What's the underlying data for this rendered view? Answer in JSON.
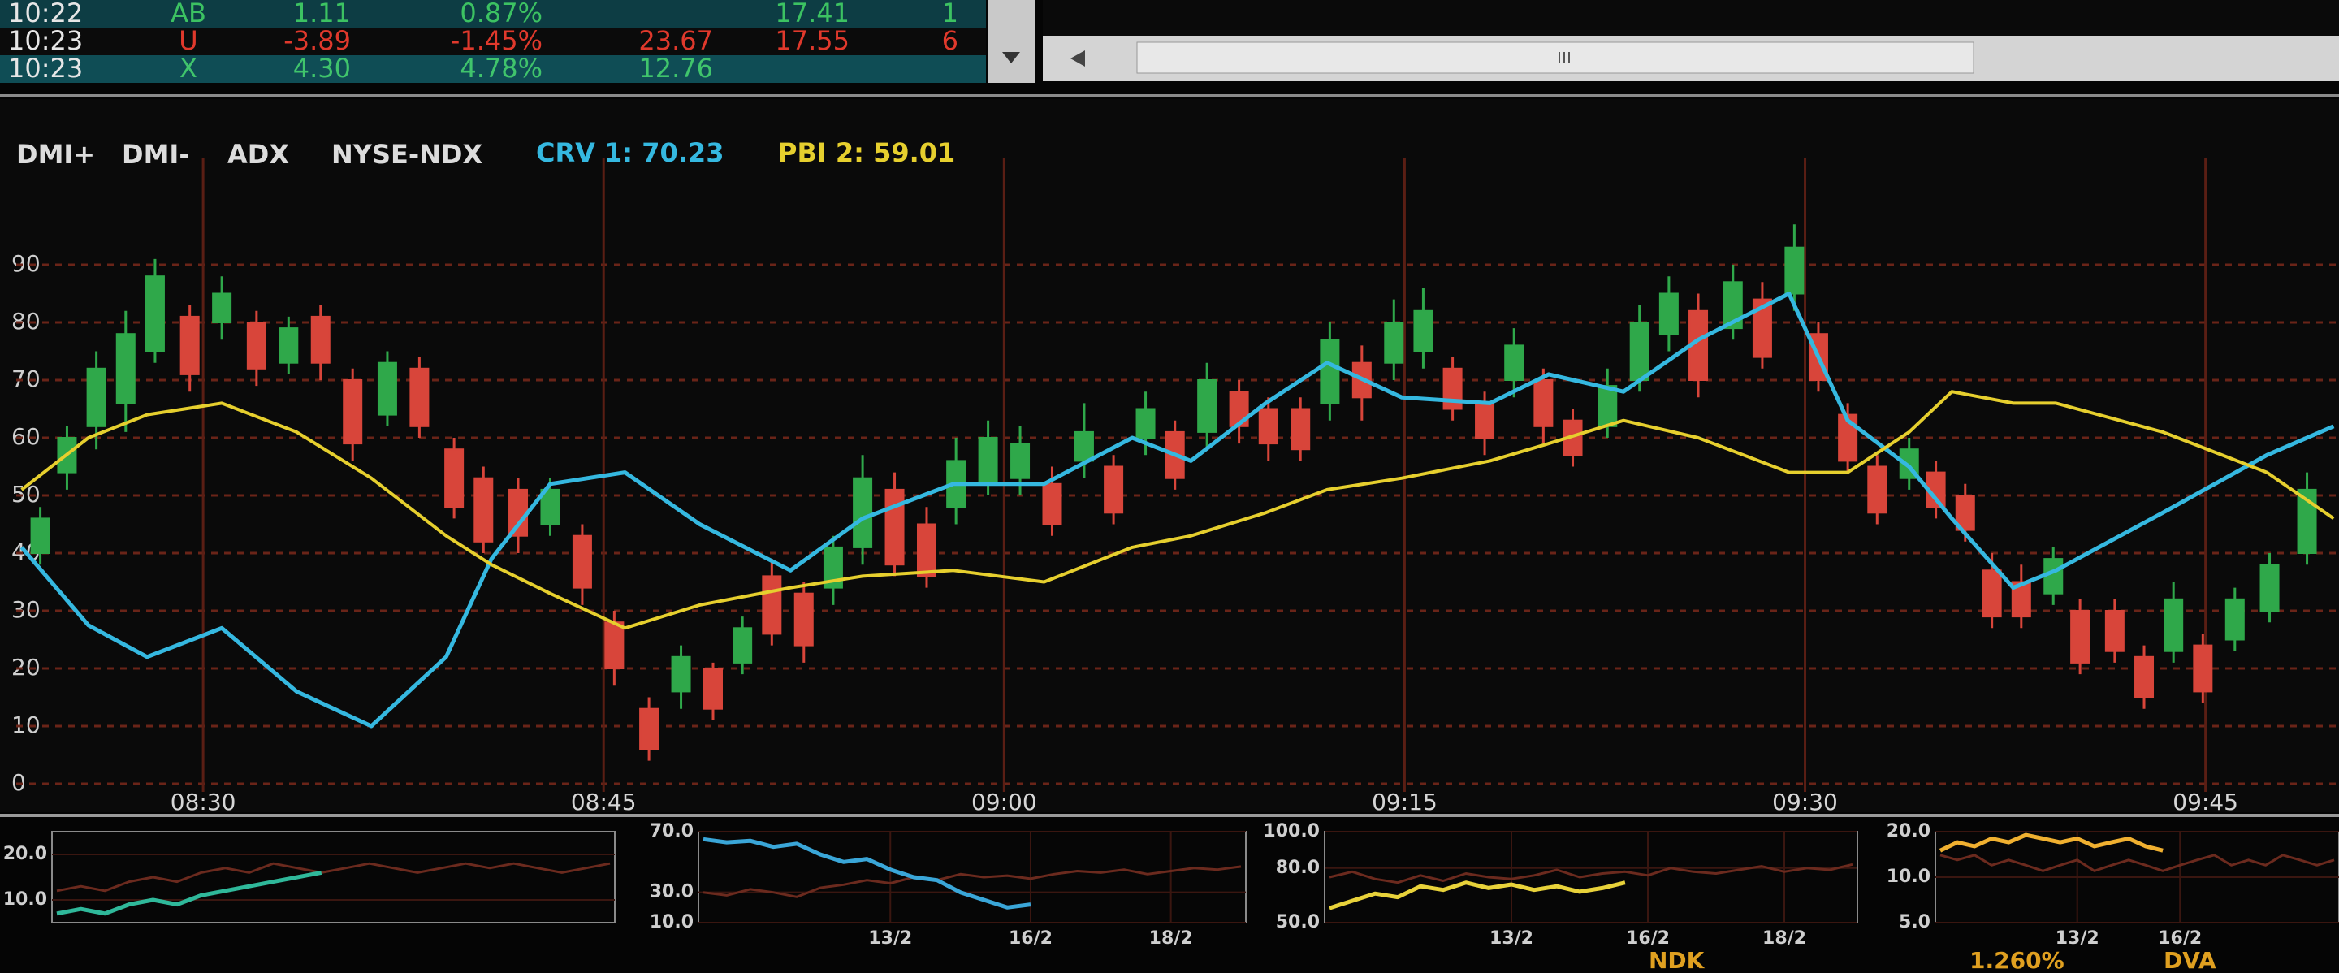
{
  "ticker_table": {
    "rows": [
      {
        "time": "10:22",
        "symbol": "AB",
        "change": "1.11",
        "pct": "0.87%",
        "avg": "17.41",
        "qty": "1",
        "color": "#3cc262"
      },
      {
        "time": "10:23",
        "symbol": "U",
        "change": "-3.89",
        "pct": "-1.45%",
        "price": "23.67",
        "avg": "17.55",
        "qty": "6",
        "color": "#e0392c"
      },
      {
        "time": "10:23",
        "symbol": "X",
        "change": "4.30",
        "pct": "4.78%",
        "price": "12.76",
        "color": "#40c46c"
      }
    ]
  },
  "main_chart": {
    "type": "candlestick",
    "legend": [
      "DMI+",
      "DMI-",
      "ADX",
      "NYSE-NDX"
    ],
    "series": [
      {
        "name": "CRV 1: 70.23",
        "color": "#35b8e0",
        "x": [
          23.2,
          25.7,
          27.9,
          30.7,
          33.5,
          36.3,
          39.1,
          40.8,
          43,
          45.8,
          48.6,
          52,
          54.7,
          58.1,
          61.5,
          64.8,
          67,
          69.8,
          72.1,
          74.9,
          78.2,
          80.4,
          83.2,
          86,
          89.4,
          91.6,
          93.9,
          95.5,
          97.8,
          99.4,
          103.4,
          107.3,
          109.8
        ],
        "values": [
          41,
          27.5,
          22,
          27,
          16,
          10,
          22,
          39,
          52,
          54,
          45,
          37,
          46,
          52,
          52,
          60,
          56,
          66,
          73,
          67,
          66,
          71,
          68,
          77,
          85,
          63,
          55,
          46,
          34,
          37,
          47,
          57,
          62
        ]
      },
      {
        "name": "PBI 2: 59.01",
        "color": "#e6cf2e",
        "x": [
          23.2,
          25.7,
          27.9,
          30.7,
          33.5,
          36.3,
          39.1,
          40.8,
          43,
          45.8,
          48.6,
          52,
          54.7,
          58.1,
          61.5,
          64.8,
          67,
          69.8,
          72.1,
          74.9,
          78.2,
          80.4,
          83.2,
          86,
          89.4,
          91.6,
          93.9,
          95.5,
          97.8,
          99.4,
          103.4,
          107.3,
          109.8
        ],
        "values": [
          51,
          60,
          64,
          66,
          61,
          53,
          43,
          38,
          33,
          27,
          31,
          34,
          36,
          37,
          35,
          41,
          43,
          47,
          51,
          53,
          56,
          59,
          63,
          60,
          54,
          54,
          61,
          68,
          66,
          66,
          61,
          54,
          46
        ]
      }
    ],
    "candles": {
      "up_color": "#2fa84a",
      "down_color": "#d8453a",
      "x": [
        23.9,
        24.9,
        26.0,
        27.1,
        28.2,
        29.5,
        30.7,
        32.0,
        33.2,
        34.4,
        35.6,
        36.9,
        38.1,
        39.4,
        40.5,
        41.8,
        43.0,
        44.2,
        45.4,
        46.7,
        47.9,
        49.1,
        50.2,
        51.3,
        52.5,
        53.6,
        54.7,
        55.9,
        57.1,
        58.2,
        59.4,
        60.6,
        61.8,
        63.0,
        64.1,
        65.3,
        66.4,
        67.6,
        68.8,
        69.9,
        71.1,
        72.2,
        73.4,
        74.6,
        75.7,
        76.8,
        78.0,
        79.1,
        80.2,
        81.3,
        82.6,
        83.8,
        84.9,
        86.0,
        87.3,
        88.4,
        89.6,
        90.5,
        91.6,
        92.7,
        93.9,
        94.9,
        96.0,
        97.0,
        98.1,
        99.3,
        100.3,
        101.6,
        102.7,
        103.8,
        104.9,
        106.1,
        107.4,
        108.8
      ],
      "open": [
        40,
        54,
        62,
        66,
        75,
        81,
        80,
        80,
        73,
        81,
        70,
        64,
        72,
        58,
        53,
        51,
        45,
        43,
        28,
        13,
        16,
        20,
        21,
        36,
        33,
        34,
        41,
        51,
        45,
        48,
        52,
        53,
        52,
        56,
        55,
        60,
        61,
        61,
        68,
        65,
        65,
        66,
        73,
        73,
        75,
        72,
        66,
        70,
        70,
        63,
        62,
        70,
        78,
        82,
        79,
        84,
        85,
        78,
        64,
        55,
        53,
        54,
        50,
        37,
        35,
        33,
        30,
        30,
        22,
        23,
        24,
        25,
        30,
        40
      ],
      "high": [
        48,
        62,
        75,
        82,
        91,
        83,
        88,
        82,
        81,
        83,
        72,
        75,
        74,
        60,
        55,
        53,
        53,
        45,
        30,
        15,
        24,
        21,
        29,
        39,
        35,
        43,
        57,
        54,
        48,
        60,
        63,
        62,
        55,
        66,
        57,
        68,
        63,
        73,
        70,
        67,
        67,
        80,
        76,
        84,
        86,
        74,
        68,
        79,
        72,
        65,
        72,
        83,
        88,
        85,
        90,
        87,
        97,
        80,
        66,
        57,
        60,
        56,
        52,
        40,
        38,
        41,
        32,
        32,
        24,
        35,
        26,
        34,
        40,
        54
      ],
      "low": [
        38,
        51,
        58,
        61,
        73,
        68,
        77,
        69,
        71,
        70,
        56,
        62,
        60,
        46,
        40,
        40,
        43,
        31,
        17,
        4,
        13,
        11,
        19,
        24,
        21,
        31,
        38,
        36,
        34,
        45,
        50,
        50,
        43,
        53,
        45,
        57,
        51,
        58,
        59,
        56,
        56,
        63,
        63,
        70,
        72,
        63,
        57,
        67,
        59,
        55,
        60,
        68,
        75,
        67,
        77,
        72,
        82,
        68,
        54,
        45,
        51,
        46,
        42,
        27,
        27,
        31,
        19,
        21,
        13,
        21,
        14,
        23,
        28,
        38
      ],
      "close": [
        46,
        60,
        72,
        78,
        88,
        71,
        85,
        72,
        79,
        73,
        59,
        73,
        62,
        48,
        42,
        43,
        51,
        34,
        20,
        6,
        22,
        13,
        27,
        26,
        24,
        41,
        53,
        38,
        36,
        56,
        60,
        59,
        45,
        61,
        47,
        65,
        53,
        70,
        62,
        59,
        58,
        77,
        67,
        80,
        82,
        65,
        60,
        76,
        62,
        57,
        69,
        80,
        85,
        70,
        87,
        74,
        93,
        70,
        56,
        47,
        58,
        48,
        44,
        29,
        29,
        39,
        21,
        23,
        15,
        32,
        16,
        32,
        38,
        51
      ]
    },
    "xlim": [
      23,
      110
    ],
    "xticks": [
      {
        "value": 30,
        "label": "08:30"
      },
      {
        "value": 45,
        "label": "08:45"
      },
      {
        "value": 60,
        "label": "09:00"
      },
      {
        "value": 75,
        "label": "09:15"
      },
      {
        "value": 90,
        "label": "09:30"
      },
      {
        "value": 105,
        "label": "09:45"
      }
    ],
    "ylim": [
      0,
      100
    ],
    "yticks": [
      0,
      10,
      20,
      30,
      40,
      50,
      60,
      70,
      80,
      90
    ],
    "grid": true
  },
  "mini_charts": [
    {
      "type": "line",
      "ylim": [
        5,
        25
      ],
      "yticks": [
        {
          "value": 10,
          "label": "10.0"
        },
        {
          "value": 20,
          "label": "20.0"
        }
      ],
      "series": [
        {
          "color": "#6b2a1e",
          "values": [
            12,
            13,
            12,
            14,
            15,
            14,
            16,
            17,
            16,
            18,
            17,
            16,
            17,
            18,
            17,
            16,
            17,
            18,
            17,
            18,
            17,
            16,
            17,
            18
          ]
        },
        {
          "color": "#2fb89a",
          "values": [
            7,
            8,
            7,
            9,
            10,
            9,
            11,
            12,
            13,
            14,
            15,
            16,
            null,
            null,
            null,
            null,
            null,
            null,
            null,
            null,
            null,
            null,
            null,
            null
          ]
        }
      ]
    },
    {
      "type": "line",
      "ylim": [
        10,
        70
      ],
      "yticks": [
        {
          "value": 10,
          "label": "10.0"
        },
        {
          "value": 30,
          "label": "30.0"
        },
        {
          "value": 70,
          "label": "70.0"
        }
      ],
      "categories": [
        null,
        null,
        null,
        null,
        null,
        null,
        null,
        null,
        "13/2",
        null,
        null,
        null,
        null,
        null,
        "16/2",
        null,
        null,
        null,
        null,
        null,
        "18/2",
        null,
        null,
        null
      ],
      "series": [
        {
          "color": "#6b2a1e",
          "values": [
            30,
            28,
            32,
            30,
            27,
            33,
            35,
            38,
            36,
            40,
            38,
            42,
            40,
            41,
            39,
            42,
            44,
            43,
            45,
            42,
            44,
            46,
            45,
            47
          ]
        },
        {
          "color": "#3aa6d8",
          "values": [
            65,
            63,
            64,
            60,
            62,
            55,
            50,
            52,
            45,
            40,
            38,
            30,
            25,
            20,
            22,
            null,
            null,
            null,
            null,
            null,
            null,
            null,
            null,
            null
          ]
        }
      ]
    },
    {
      "type": "line",
      "ylim": [
        50,
        100
      ],
      "yticks": [
        {
          "value": 50,
          "label": "50.0"
        },
        {
          "value": 80,
          "label": "80.0"
        },
        {
          "value": 100,
          "label": "100.0"
        }
      ],
      "categories": [
        null,
        null,
        null,
        null,
        null,
        null,
        null,
        null,
        "13/2",
        null,
        null,
        null,
        null,
        null,
        "16/2",
        null,
        null,
        null,
        null,
        null,
        "18/2",
        null,
        null,
        null
      ],
      "series": [
        {
          "color": "#6b2a1e",
          "values": [
            75,
            78,
            74,
            72,
            76,
            73,
            77,
            75,
            74,
            76,
            79,
            75,
            77,
            78,
            76,
            80,
            78,
            77,
            79,
            81,
            78,
            80,
            79,
            82
          ]
        },
        {
          "color": "#e8d23a",
          "values": [
            58,
            62,
            66,
            64,
            70,
            68,
            72,
            69,
            71,
            68,
            70,
            67,
            69,
            72,
            null,
            null,
            null,
            null,
            null,
            null,
            null,
            null,
            null,
            null
          ]
        }
      ]
    },
    {
      "type": "line",
      "log": true,
      "ylim": [
        5,
        20
      ],
      "yticks": [
        {
          "value": 5,
          "label": "5.0"
        },
        {
          "value": 10,
          "label": "10.0"
        },
        {
          "value": 20,
          "label": "20.0"
        }
      ],
      "categories": [
        null,
        null,
        null,
        null,
        null,
        null,
        null,
        null,
        "13/2",
        null,
        null,
        null,
        null,
        null,
        "16/2",
        null,
        null,
        null,
        null,
        null,
        null,
        null,
        null,
        null
      ],
      "series": [
        {
          "color": "#6b2a1e",
          "values": [
            14,
            13,
            14,
            12,
            13,
            12,
            11,
            12,
            13,
            11,
            12,
            13,
            12,
            11,
            12,
            13,
            14,
            12,
            13,
            12,
            14,
            13,
            12,
            13
          ]
        },
        {
          "color": "#f0b030",
          "values": [
            15,
            17,
            16,
            18,
            17,
            19,
            18,
            17,
            18,
            16,
            17,
            18,
            16,
            15,
            null,
            null,
            null,
            null,
            null,
            null,
            null,
            null,
            null,
            null
          ]
        }
      ]
    }
  ],
  "footer": {
    "labels": [
      "NDK",
      "1.260%",
      "DVA"
    ]
  }
}
